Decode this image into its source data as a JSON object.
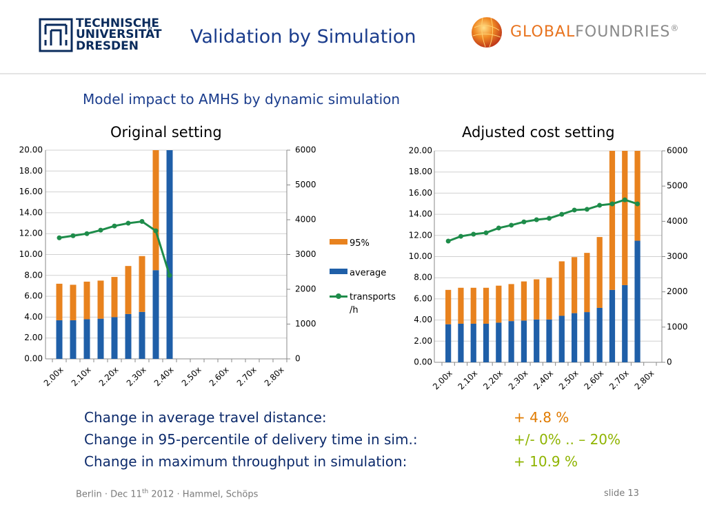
{
  "header": {
    "university": [
      "TECHNISCHE",
      "UNIVERSITÄT",
      "DRESDEN"
    ],
    "title": "Validation by Simulation",
    "company": {
      "part1": "GLOBAL",
      "part2": "FOUNDRIES",
      "mark": "®"
    }
  },
  "subtitle": "Model impact to AMHS by dynamic simulation",
  "chart_data": [
    {
      "type": "bar",
      "stacked": true,
      "title": "Original setting",
      "categories": [
        "2.00x",
        null,
        "2.10x",
        null,
        "2.20x",
        null,
        "2.30x",
        null,
        "2.40x",
        null,
        "2.50x",
        null,
        "2.60x",
        null,
        "2.70x",
        null,
        "2.80x"
      ],
      "series": [
        {
          "name": "average",
          "color": "#1f5fa8",
          "values": [
            3.7,
            3.7,
            3.8,
            3.85,
            4.0,
            4.3,
            4.5,
            8.5,
            20,
            null,
            null,
            null,
            null,
            null,
            null,
            null,
            null
          ]
        },
        {
          "name": "95%",
          "color": "#e8821e",
          "values": [
            3.5,
            3.4,
            3.6,
            3.65,
            3.85,
            4.6,
            5.35,
            11.5,
            null,
            null,
            null,
            null,
            null,
            null,
            null,
            null,
            null
          ]
        },
        {
          "name": "transports /h",
          "type": "line",
          "axis": "y2",
          "color": "#1e8c4a",
          "values": [
            3480,
            3540,
            3600,
            3700,
            3820,
            3900,
            3950,
            3680,
            2400,
            null,
            null,
            null,
            null,
            null,
            null,
            null,
            null
          ]
        }
      ],
      "ylim": [
        0,
        20
      ],
      "yticks": [
        {
          "value": 0,
          "label": "0.00"
        },
        {
          "value": 2,
          "label": "2.00"
        },
        {
          "value": 4,
          "label": "4.00"
        },
        {
          "value": 6,
          "label": "6.00"
        },
        {
          "value": 8,
          "label": "8.00"
        },
        {
          "value": 10,
          "label": "10.00"
        },
        {
          "value": 12,
          "label": "12.00"
        },
        {
          "value": 14,
          "label": "14.00"
        },
        {
          "value": 16,
          "label": "16.00"
        },
        {
          "value": 18,
          "label": "18.00"
        },
        {
          "value": 20,
          "label": "20.00"
        }
      ],
      "y2lim": [
        0,
        6000
      ],
      "y2ticks": [
        0,
        1000,
        2000,
        3000,
        4000,
        5000,
        6000
      ],
      "grid": true,
      "legend": "right"
    },
    {
      "type": "bar",
      "stacked": true,
      "title": "Adjusted cost setting",
      "categories": [
        "2.00x",
        null,
        "2.10x",
        null,
        "2.20x",
        null,
        "2.30x",
        null,
        "2.40x",
        null,
        "2.50x",
        null,
        "2.60x",
        null,
        "2.70x",
        null,
        "2.80x"
      ],
      "series": [
        {
          "name": "average",
          "color": "#1f5fa8",
          "values": [
            3.6,
            3.65,
            3.65,
            3.65,
            3.75,
            3.9,
            3.95,
            4.05,
            4.05,
            4.4,
            4.65,
            4.75,
            5.15,
            6.85,
            7.3,
            11.5,
            null
          ]
        },
        {
          "name": "95%",
          "color": "#e8821e",
          "values": [
            3.25,
            3.4,
            3.4,
            3.4,
            3.5,
            3.5,
            3.7,
            3.8,
            3.95,
            5.15,
            5.3,
            5.6,
            6.7,
            13.15,
            12.7,
            8.5,
            null
          ]
        },
        {
          "name": "transports /h",
          "type": "line",
          "axis": "y2",
          "color": "#1e8c4a",
          "values": [
            3440,
            3575,
            3635,
            3675,
            3810,
            3890,
            3985,
            4045,
            4085,
            4200,
            4320,
            4340,
            4455,
            4495,
            4610,
            4495,
            null
          ]
        }
      ],
      "ylim": [
        0,
        20
      ],
      "yticks": [
        {
          "value": 0,
          "label": "0.00"
        },
        {
          "value": 2,
          "label": "2.00"
        },
        {
          "value": 4,
          "label": "4.00"
        },
        {
          "value": 6,
          "label": "6.00"
        },
        {
          "value": 8,
          "label": "8.00"
        },
        {
          "value": 10,
          "label": "10.00"
        },
        {
          "value": 12,
          "label": "12.00"
        },
        {
          "value": 14,
          "label": "14.00"
        },
        {
          "value": 16,
          "label": "16.00"
        },
        {
          "value": 18,
          "label": "18.00"
        },
        {
          "value": 20,
          "label": "20.00"
        }
      ],
      "y2lim": [
        0,
        6000
      ],
      "y2ticks": [
        0,
        1000,
        2000,
        3000,
        4000,
        5000,
        6000
      ],
      "grid": true,
      "legend": false
    }
  ],
  "summary": [
    {
      "label": "Change in average travel distance:",
      "value": "+ 4.8 %",
      "color": "#e07b00"
    },
    {
      "label": "Change in 95-percentile of delivery time in sim.:",
      "value": "+/- 0% .. – 20%",
      "color": "#8fb400"
    },
    {
      "label": "Change in maximum throughput in simulation:",
      "value": "+ 10.9 %",
      "color": "#8fb400"
    }
  ],
  "footer": {
    "place_date": "Berlin · Dec 11",
    "superscript": "th",
    "rest": " 2012 · Hammel, Schöps",
    "slide": "slide 13"
  }
}
